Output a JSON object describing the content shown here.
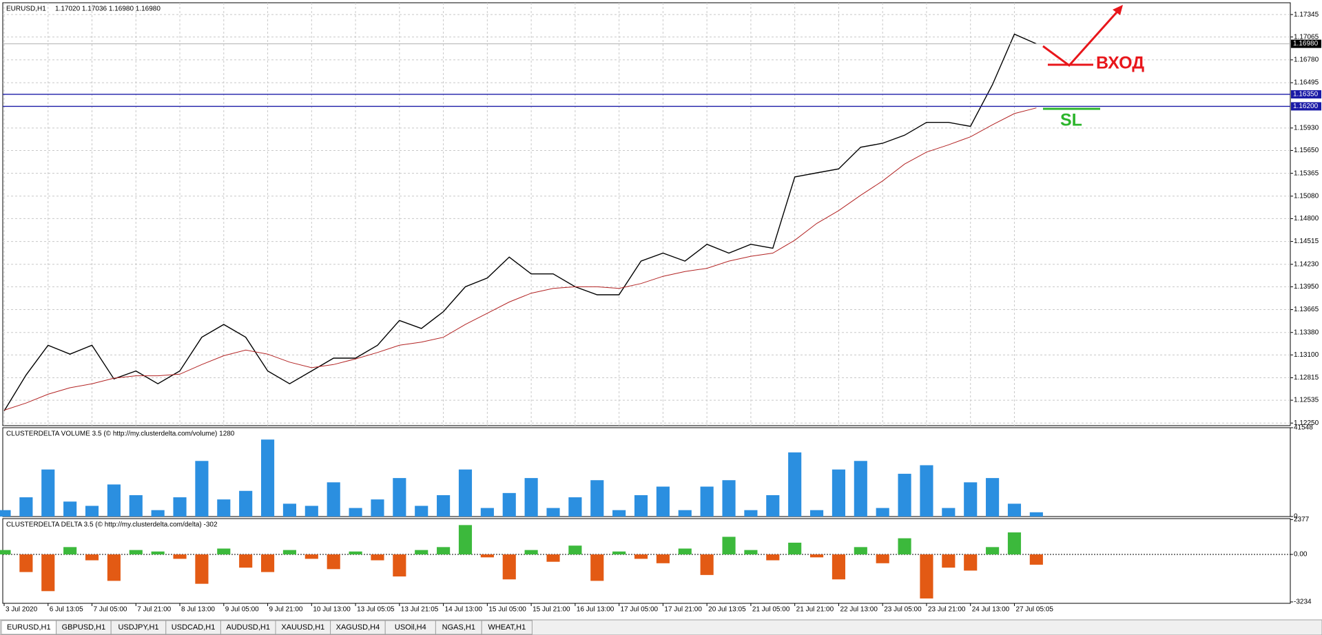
{
  "chart_data": [
    {
      "type": "line",
      "title": "EURUSD,H1",
      "quote": "1.17020 1.17036 1.16980 1.16980",
      "x_labels": [
        "3 Jul 2020",
        "6 Jul 13:05",
        "7 Jul 05:00",
        "7 Jul 21:00",
        "8 Jul 13:00",
        "9 Jul 05:00",
        "9 Jul 21:00",
        "10 Jul 13:00",
        "13 Jul 05:05",
        "13 Jul 21:05",
        "14 Jul 13:00",
        "15 Jul 05:00",
        "15 Jul 21:00",
        "16 Jul 13:00",
        "17 Jul 05:00",
        "17 Jul 21:00",
        "20 Jul 13:05",
        "21 Jul 05:00",
        "21 Jul 21:00",
        "22 Jul 13:00",
        "23 Jul 05:00",
        "23 Jul 21:00",
        "24 Jul 13:00",
        "27 Jul 05:05"
      ],
      "series": [
        {
          "color": "#000000",
          "values": [
            1.124,
            1.1285,
            1.1322,
            1.1311,
            1.1322,
            1.128,
            1.129,
            1.1274,
            1.129,
            1.1332,
            1.1348,
            1.1332,
            1.129,
            1.1274,
            1.129,
            1.1306,
            1.1306,
            1.1322,
            1.1353,
            1.1343,
            1.1364,
            1.1395,
            1.1406,
            1.1432,
            1.1411,
            1.1411,
            1.1395,
            1.1385,
            1.1385,
            1.1427,
            1.1437,
            1.1427,
            1.1448,
            1.1437,
            1.1448,
            1.1443,
            1.1532,
            1.1537,
            1.1542,
            1.1569,
            1.1574,
            1.1584,
            1.16,
            1.16,
            1.1595,
            1.1647,
            1.171,
            1.1698
          ]
        },
        {
          "color": "#b22222",
          "values": [
            1.1241,
            1.125,
            1.1261,
            1.1269,
            1.1274,
            1.1281,
            1.1284,
            1.1284,
            1.1286,
            1.1298,
            1.1309,
            1.1316,
            1.1311,
            1.1301,
            1.1294,
            1.1298,
            1.1305,
            1.1313,
            1.1322,
            1.1326,
            1.1332,
            1.1348,
            1.1362,
            1.1376,
            1.1387,
            1.1393,
            1.1395,
            1.1395,
            1.1393,
            1.1399,
            1.1408,
            1.1414,
            1.1418,
            1.1427,
            1.1433,
            1.1437,
            1.1453,
            1.1474,
            1.149,
            1.1509,
            1.1527,
            1.1548,
            1.1563,
            1.1572,
            1.1582,
            1.1597,
            1.1611,
            1.1618
          ]
        }
      ],
      "ylim": [
        1.12218,
        1.17492
      ],
      "yticks": [
        {
          "value": 1.17345,
          "label": "1.17345"
        },
        {
          "value": 1.17065,
          "label": "1.17065"
        },
        {
          "value": 1.1678,
          "label": "1.16780"
        },
        {
          "value": 1.16495,
          "label": "1.16495"
        },
        {
          "value": 1.1593,
          "label": "1.15930"
        },
        {
          "value": 1.1565,
          "label": "1.15650"
        },
        {
          "value": 1.15365,
          "label": "1.15365"
        },
        {
          "value": 1.1508,
          "label": "1.15080"
        },
        {
          "value": 1.148,
          "label": "1.14800"
        },
        {
          "value": 1.14515,
          "label": "1.14515"
        },
        {
          "value": 1.1423,
          "label": "1.14230"
        },
        {
          "value": 1.1395,
          "label": "1.13950"
        },
        {
          "value": 1.13665,
          "label": "1.13665"
        },
        {
          "value": 1.1338,
          "label": "1.13380"
        },
        {
          "value": 1.131,
          "label": "1.13100"
        },
        {
          "value": 1.12815,
          "label": "1.12815"
        },
        {
          "value": 1.12535,
          "label": "1.12535"
        },
        {
          "value": 1.1225,
          "label": "1.12250"
        }
      ],
      "levels": [
        {
          "value": 1.1635,
          "label": "1.16350",
          "color": "#1a1aa6"
        },
        {
          "value": 1.162,
          "label": "1.16200",
          "color": "#1a1aa6"
        }
      ],
      "current_price": {
        "value": 1.1698,
        "label": "1.16980"
      },
      "entry_label": "ВХОД",
      "stop_label": "SL",
      "grid": true
    },
    {
      "type": "bar",
      "title": "CLUSTERDELTA VOLUME 3.5 (© http://my.clusterdelta.com/volume) 1280",
      "color": "#2b8fe0",
      "values": [
        3000,
        9000,
        22000,
        7000,
        5000,
        15000,
        10000,
        3000,
        9000,
        26000,
        8000,
        12000,
        36000,
        6000,
        5000,
        16000,
        4000,
        8000,
        18000,
        5000,
        10000,
        22000,
        4000,
        11000,
        18000,
        4000,
        9000,
        17000,
        3000,
        10000,
        14000,
        3000,
        14000,
        17000,
        3000,
        10000,
        30000,
        3000,
        22000,
        26000,
        4000,
        20000,
        24000,
        4000,
        16000,
        18000,
        6000,
        2000
      ],
      "ylim": [
        0,
        41548
      ],
      "yticks": [
        41548,
        0
      ]
    },
    {
      "type": "bar",
      "title": "CLUSTERDELTA DELTA 3.5 (© http://my.clusterdelta.com/delta) -302",
      "colors": {
        "positive": "#3cb93c",
        "negative": "#e35a14"
      },
      "values": [
        300,
        -1200,
        -2500,
        500,
        -400,
        -1800,
        300,
        200,
        -300,
        -2000,
        400,
        -900,
        -1200,
        300,
        -300,
        -1000,
        200,
        -400,
        -1500,
        300,
        500,
        2000,
        -200,
        -1700,
        300,
        -500,
        600,
        -1800,
        200,
        -300,
        -600,
        400,
        -1400,
        1200,
        300,
        -400,
        800,
        -200,
        -1700,
        500,
        -600,
        1100,
        -3000,
        -900,
        -1100,
        500,
        1500,
        -700
      ],
      "ylim": [
        -3330,
        2440
      ],
      "yticks": [
        2377,
        {
          "value": 0,
          "label": "0.00"
        },
        -3234
      ]
    }
  ],
  "tabs": [
    "EURUSD,H1",
    "GBPUSD,H1",
    "USDJPY,H1",
    "USDCAD,H1",
    "AUDUSD,H1",
    "XAUUSD,H1",
    "XAGUSD,H4",
    "USOil,H4",
    "NGAS,H1",
    "WHEAT,H1"
  ]
}
